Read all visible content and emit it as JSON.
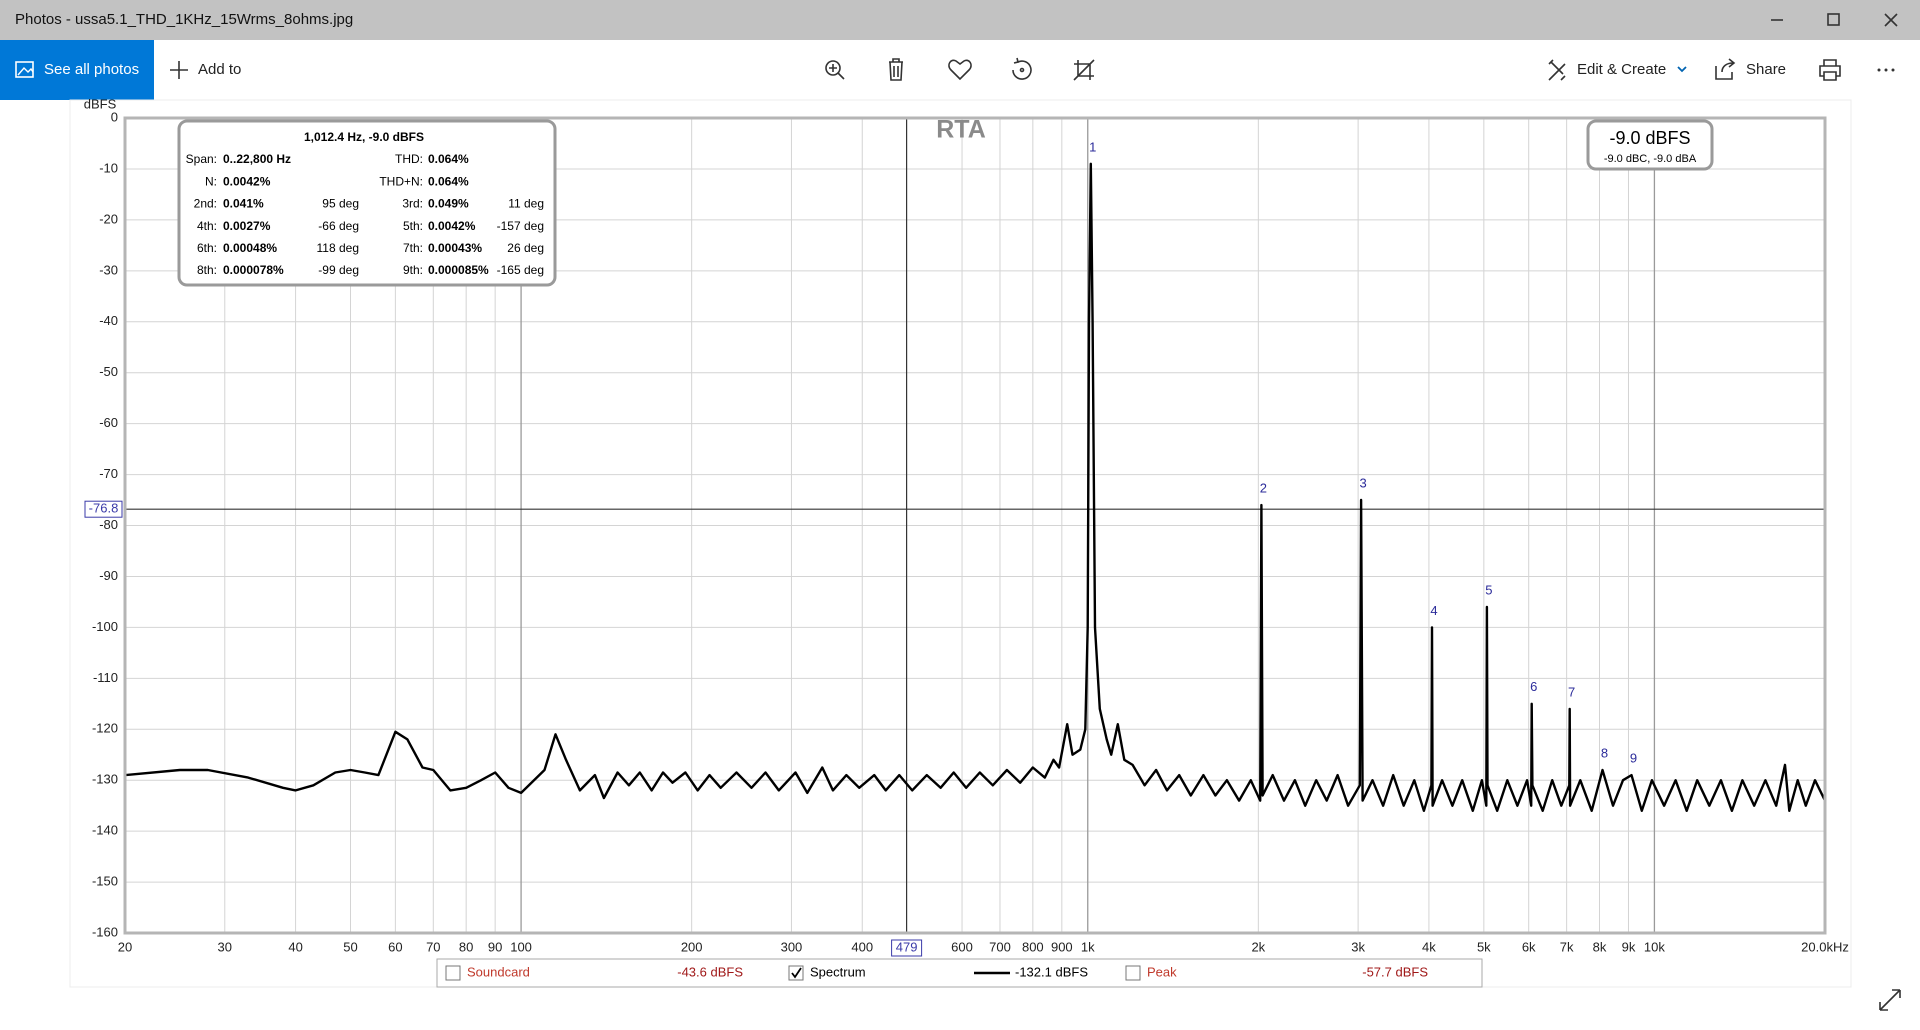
{
  "window": {
    "title": "Photos - ussa5.1_THD_1KHz_15Wrms_8ohms.jpg"
  },
  "toolbar": {
    "see_all_photos": "See all photos",
    "add_to": "Add to",
    "edit_create": "Edit & Create",
    "share": "Share"
  },
  "chart_data": {
    "type": "line",
    "title": "RTA",
    "y_label": "dBFS",
    "log_x": true,
    "grid": true,
    "xlim": [
      20,
      20000
    ],
    "ylim": [
      -160,
      0
    ],
    "yticks": [
      0,
      -10,
      -20,
      -30,
      -40,
      -50,
      -60,
      -70,
      -80,
      -90,
      -100,
      -110,
      -120,
      -130,
      -140,
      -150,
      -160
    ],
    "xticks": [
      20,
      30,
      40,
      50,
      60,
      70,
      80,
      90,
      100,
      200,
      300,
      400,
      600,
      700,
      800,
      900,
      {
        "value": 1000,
        "label": "1k"
      },
      {
        "value": 2000,
        "label": "2k"
      },
      {
        "value": 3000,
        "label": "3k"
      },
      {
        "value": 4000,
        "label": "4k"
      },
      {
        "value": 5000,
        "label": "5k"
      },
      {
        "value": 6000,
        "label": "6k"
      },
      {
        "value": 7000,
        "label": "7k"
      },
      {
        "value": 8000,
        "label": "8k"
      },
      {
        "value": 9000,
        "label": "9k"
      },
      {
        "value": 10000,
        "label": "10k"
      },
      {
        "value": 20000,
        "label": "20.0kHz"
      }
    ],
    "x": [
      20,
      25,
      28,
      33,
      38,
      40,
      43,
      47,
      50,
      53,
      56,
      60,
      63,
      67,
      70,
      75,
      80,
      85,
      90,
      95,
      100,
      110,
      115,
      120,
      127,
      135,
      140,
      148,
      155,
      162,
      170,
      178,
      185,
      195,
      205,
      215,
      225,
      240,
      255,
      270,
      285,
      305,
      320,
      340,
      355,
      375,
      395,
      420,
      440,
      465,
      490,
      520,
      550,
      580,
      610,
      645,
      680,
      720,
      760,
      800,
      840,
      870,
      890,
      920,
      940,
      970,
      990,
      1000,
      1005,
      1012.4,
      1020,
      1030,
      1050,
      1080,
      1100,
      1130,
      1160,
      1200,
      1260,
      1320,
      1380,
      1450,
      1520,
      1600,
      1680,
      1760,
      1850,
      1940,
      2015,
      2024.8,
      2035,
      2120,
      2220,
      2320,
      2420,
      2530,
      2640,
      2760,
      2880,
      3020,
      3037,
      3055,
      3180,
      3320,
      3460,
      3610,
      3770,
      3920,
      4040,
      4050,
      4060,
      4220,
      4400,
      4580,
      4780,
      4960,
      5050,
      5062,
      5075,
      5280,
      5500,
      5730,
      5960,
      6060,
      6074,
      6090,
      6350,
      6600,
      6850,
      7075,
      7087,
      7100,
      7400,
      7750,
      8099,
      8450,
      8800,
      9112,
      9500,
      9900,
      10400,
      10900,
      11400,
      11900,
      12500,
      13100,
      13700,
      14300,
      15000,
      15700,
      16400,
      17000,
      17300,
      17900,
      18500,
      19200,
      20000
    ],
    "series": [
      {
        "name": "Spectrum",
        "color": "#000000",
        "values": [
          -129,
          -128,
          -128,
          -129.5,
          -131.5,
          -132,
          -131,
          -128.5,
          -128,
          -128.5,
          -129,
          -120.5,
          -122,
          -127.5,
          -128,
          -132,
          -131.5,
          -130,
          -128.5,
          -131.5,
          -132.5,
          -128,
          -121,
          -126,
          -132,
          -129,
          -133.5,
          -128.5,
          -131,
          -128.5,
          -132,
          -128.5,
          -130.5,
          -128.5,
          -132,
          -129,
          -131.5,
          -128.5,
          -131.5,
          -128.5,
          -132,
          -128.5,
          -132.5,
          -127.5,
          -132,
          -129,
          -131.5,
          -129,
          -132,
          -129,
          -132,
          -129,
          -131.5,
          -128.5,
          -131.5,
          -128.5,
          -131,
          -128,
          -130.5,
          -127.5,
          -129.5,
          -126,
          -127.5,
          -119,
          -125,
          -124,
          -120,
          -100,
          -40,
          -9,
          -40,
          -100,
          -116,
          -122,
          -125,
          -119,
          -126,
          -127,
          -131,
          -128,
          -132,
          -129,
          -133,
          -129,
          -133,
          -130,
          -134,
          -130,
          -134,
          -76,
          -133,
          -129,
          -134,
          -130,
          -135,
          -130,
          -134,
          -129,
          -135,
          -131,
          -75,
          -134,
          -130,
          -135,
          -129,
          -135,
          -130,
          -136,
          -131,
          -100,
          -135,
          -130,
          -135,
          -130,
          -136,
          -130,
          -135,
          -96,
          -131,
          -136,
          -130,
          -135,
          -130,
          -135,
          -115,
          -131,
          -136,
          -130,
          -135,
          -131,
          -116,
          -135,
          -130,
          -136,
          -128,
          -135,
          -130,
          -129,
          -136,
          -130,
          -135,
          -130,
          -136,
          -130,
          -135,
          -130,
          -136,
          -130,
          -135,
          -130,
          -135,
          -127,
          -136,
          -130,
          -135,
          -130,
          -134
        ]
      }
    ],
    "harmonics": [
      {
        "n": 1,
        "x": 1012.4,
        "y": -9
      },
      {
        "n": 2,
        "x": 2024.8,
        "y": -76
      },
      {
        "n": 3,
        "x": 3037,
        "y": -75
      },
      {
        "n": 4,
        "x": 4050,
        "y": -100
      },
      {
        "n": 5,
        "x": 5062,
        "y": -96
      },
      {
        "n": 6,
        "x": 6074,
        "y": -115
      },
      {
        "n": 7,
        "x": 7087,
        "y": -116
      },
      {
        "n": 8,
        "x": 8099,
        "y": -128
      },
      {
        "n": 9,
        "x": 9112,
        "y": -129
      }
    ],
    "cursor_x": 479,
    "cursor_y": -76.8,
    "readout": {
      "main": "-9.0 dBFS",
      "sub": "-9.0 dBC, -9.0 dBA"
    },
    "info": {
      "title": "1,012.4 Hz, -9.0 dBFS",
      "rows": [
        {
          "label1": "Span:",
          "value1": "0..22,800 Hz",
          "label2": "THD:",
          "value2": "0.064%"
        },
        {
          "label1": "N:",
          "value1": "0.0042%",
          "label2": "THD+N:",
          "value2": "0.064%"
        },
        {
          "label1": "2nd:",
          "value1": "0.041%",
          "phase1": "95 deg",
          "label2": "3rd:",
          "value2": "0.049%",
          "phase2": "11 deg"
        },
        {
          "label1": "4th:",
          "value1": "0.0027%",
          "phase1": "-66 deg",
          "label2": "5th:",
          "value2": "0.0042%",
          "phase2": "-157 deg"
        },
        {
          "label1": "6th:",
          "value1": "0.00048%",
          "phase1": "118 deg",
          "label2": "7th:",
          "value2": "0.00043%",
          "phase2": "26 deg"
        },
        {
          "label1": "8th:",
          "value1": "0.000078%",
          "phase1": "-99 deg",
          "label2": "9th:",
          "value2": "0.000085%",
          "phase2": "-165 deg"
        }
      ]
    },
    "legend": [
      {
        "name": "Soundcard",
        "checked": false,
        "reading": "-43.6 dBFS",
        "color": "#c0392b"
      },
      {
        "name": "Spectrum",
        "checked": true,
        "reading": "-132.1 dBFS",
        "color": "#000000"
      },
      {
        "name": "Peak",
        "checked": false,
        "reading": "-57.7 dBFS",
        "color": "#c0392b"
      }
    ]
  }
}
